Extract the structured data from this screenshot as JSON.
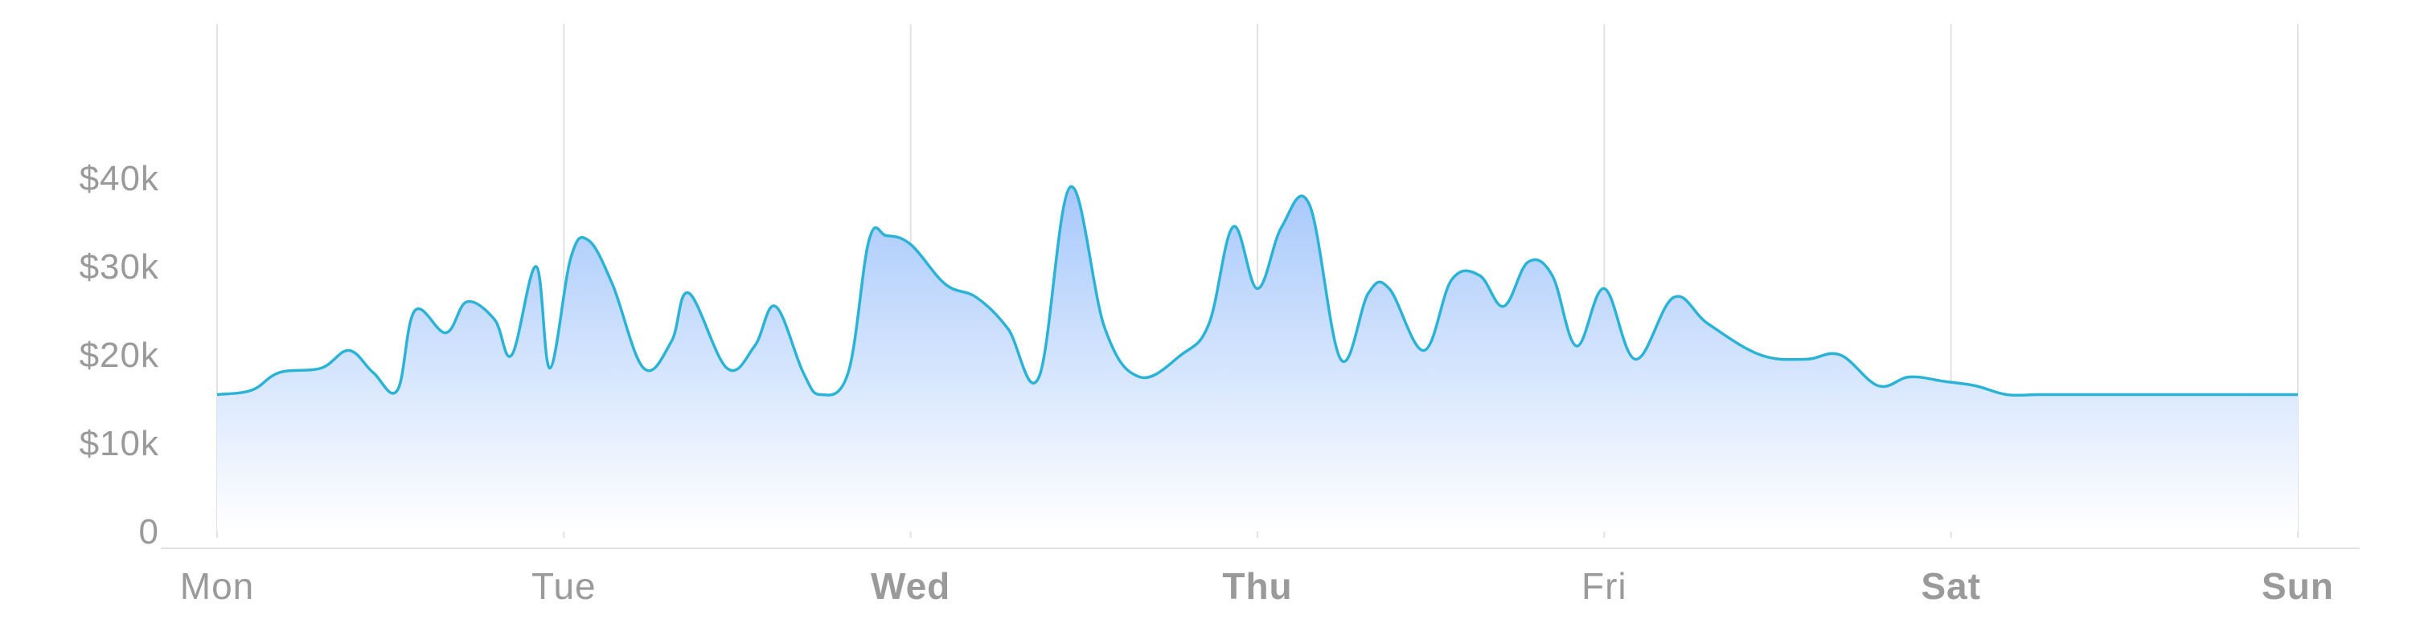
{
  "chart_data": {
    "type": "area",
    "title": "",
    "xlabel": "",
    "ylabel": "",
    "x_categories": [
      "Mon",
      "Tue",
      "Wed",
      "Thu",
      "Fri",
      "Sat",
      "Sun"
    ],
    "x_bold": [
      false,
      false,
      true,
      true,
      false,
      true,
      true
    ],
    "y_ticks": [
      0,
      10000,
      20000,
      30000,
      40000
    ],
    "y_tick_labels": [
      "0",
      "$10k",
      "$20k",
      "$30k",
      "$40k"
    ],
    "ylim": [
      0,
      60000
    ],
    "xlim": [
      0,
      6
    ],
    "grid": "vertical",
    "legend": "none",
    "colors": {
      "line": "#2bb3d6",
      "fill_top": "#a7c8fb",
      "fill_bottom": "#ffffff",
      "grid": "#e2e2e2",
      "axis": "#e0e0e0",
      "text": "#9a9a9a"
    },
    "series": [
      {
        "x": [
          0,
          0.1,
          0.18,
          0.3,
          0.38,
          0.45,
          0.52,
          0.57,
          0.66,
          0.72,
          0.8,
          0.85,
          0.92,
          0.96,
          1.02,
          1.07,
          1.14,
          1.23,
          1.31,
          1.36,
          1.47,
          1.55,
          1.61,
          1.69,
          1.74,
          1.82,
          1.88,
          1.93,
          2.0,
          2.1,
          2.19,
          2.28,
          2.37,
          2.46,
          2.56,
          2.66,
          2.78,
          2.86,
          2.93,
          3.0,
          3.07,
          3.15,
          3.24,
          3.32,
          3.38,
          3.48,
          3.56,
          3.64,
          3.71,
          3.78,
          3.85,
          3.92,
          4.0,
          4.09,
          4.2,
          4.3,
          4.45,
          4.58,
          4.68,
          4.79,
          4.88,
          4.98,
          5.07,
          5.16,
          5.25,
          5.33,
          5.42,
          5.57,
          5.71,
          5.84,
          5.93,
          6.0
        ],
        "y": [
          15500,
          16000,
          18000,
          18500,
          20500,
          18000,
          16000,
          25000,
          22500,
          26000,
          24000,
          20000,
          30000,
          18500,
          31000,
          33000,
          28000,
          18500,
          21500,
          27000,
          18500,
          21000,
          25500,
          18000,
          15500,
          18000,
          33000,
          33500,
          32500,
          28000,
          26500,
          23000,
          17500,
          39000,
          23000,
          17500,
          20000,
          23500,
          34500,
          27500,
          34500,
          37000,
          19500,
          27000,
          27500,
          20500,
          28500,
          29000,
          25500,
          30500,
          29000,
          21000,
          27500,
          19500,
          26500,
          23500,
          20000,
          19500,
          20000,
          16500,
          17500,
          17000,
          16500,
          15500,
          15500,
          15500,
          15500,
          15500,
          15500,
          15500,
          15500,
          15500
        ]
      }
    ]
  }
}
